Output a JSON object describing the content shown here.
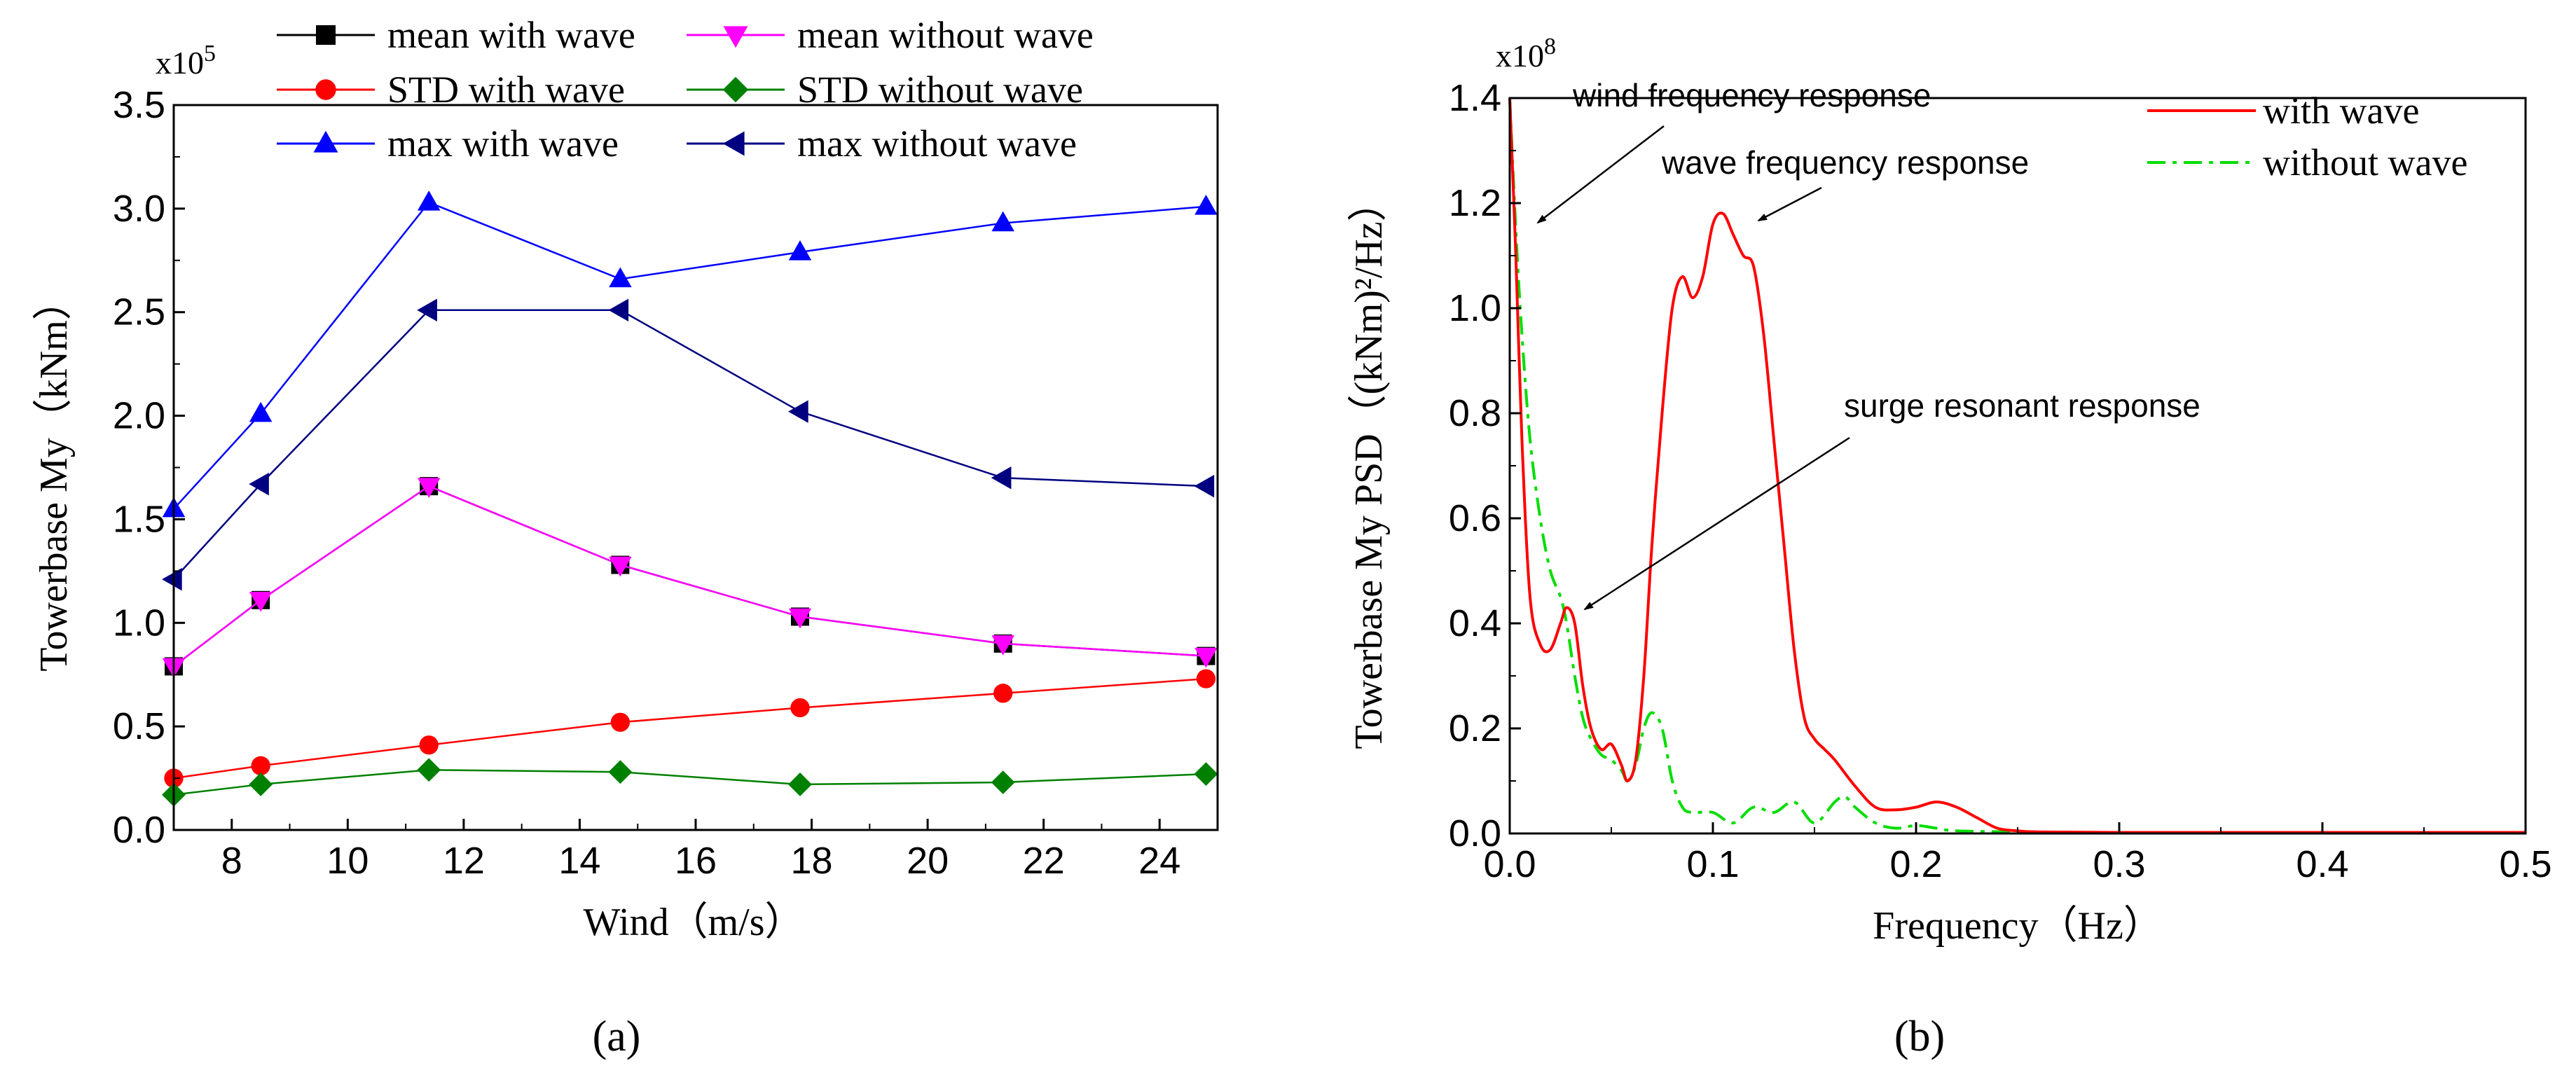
{
  "chart_data": [
    {
      "type": "line",
      "panel_label": "(a)",
      "title": "",
      "xlabel": "Wind（m/s）",
      "ylabel": "Towerbase My（kNm）",
      "y_multiplier": "x10",
      "y_multiplier_exp": "5",
      "xlim": [
        7,
        25
      ],
      "ylim": [
        0,
        3.5
      ],
      "xticks": [
        8,
        10,
        12,
        14,
        16,
        18,
        20,
        22,
        24
      ],
      "yticks": [
        0.0,
        0.5,
        1.0,
        1.5,
        2.0,
        2.5,
        3.0,
        3.5
      ],
      "legend_position": "top",
      "x": [
        7.0,
        8.5,
        11.4,
        14.7,
        17.8,
        21.3,
        24.8
      ],
      "series": [
        {
          "name": "mean with wave",
          "color": "#000000",
          "marker": "square",
          "values": [
            0.79,
            1.11,
            1.66,
            1.28,
            1.03,
            0.9,
            0.84
          ]
        },
        {
          "name": "mean without wave",
          "color": "#ff00ff",
          "marker": "triangle-down",
          "values": [
            0.79,
            1.11,
            1.66,
            1.28,
            1.03,
            0.9,
            0.84
          ]
        },
        {
          "name": "STD with wave",
          "color": "#ff0000",
          "marker": "circle",
          "values": [
            0.25,
            0.31,
            0.41,
            0.52,
            0.59,
            0.66,
            0.73
          ]
        },
        {
          "name": "STD without wave",
          "color": "#008000",
          "marker": "diamond",
          "values": [
            0.17,
            0.22,
            0.29,
            0.28,
            0.22,
            0.23,
            0.27
          ]
        },
        {
          "name": "max with wave",
          "color": "#0000ff",
          "marker": "triangle-up",
          "values": [
            1.55,
            2.01,
            3.03,
            2.66,
            2.79,
            2.93,
            3.01
          ]
        },
        {
          "name": "max without wave",
          "color": "#000080",
          "marker": "triangle-left",
          "values": [
            1.21,
            1.67,
            2.51,
            2.51,
            2.02,
            1.7,
            1.66
          ]
        }
      ]
    },
    {
      "type": "line",
      "panel_label": "(b)",
      "title": "",
      "xlabel": "Frequency（Hz）",
      "ylabel": "Towerbase My PSD（(kNm)²/Hz）",
      "y_multiplier": "x10",
      "y_multiplier_exp": "8",
      "xlim": [
        0,
        0.5
      ],
      "ylim": [
        0,
        1.4
      ],
      "xticks": [
        0.0,
        0.1,
        0.2,
        0.3,
        0.4,
        0.5
      ],
      "yticks": [
        0.0,
        0.2,
        0.4,
        0.6,
        0.8,
        1.0,
        1.2,
        1.4
      ],
      "legend_position": "top-right",
      "series": [
        {
          "name": "with wave",
          "color": "#ff0000",
          "dash": "solid",
          "x": [
            0.0,
            0.003,
            0.006,
            0.01,
            0.015,
            0.02,
            0.025,
            0.028,
            0.032,
            0.036,
            0.04,
            0.045,
            0.05,
            0.055,
            0.058,
            0.062,
            0.066,
            0.07,
            0.075,
            0.08,
            0.085,
            0.09,
            0.095,
            0.1,
            0.105,
            0.11,
            0.115,
            0.12,
            0.125,
            0.13,
            0.135,
            0.14,
            0.145,
            0.15,
            0.155,
            0.16,
            0.17,
            0.18,
            0.19,
            0.2,
            0.21,
            0.22,
            0.23,
            0.24,
            0.25,
            0.26,
            0.3,
            0.4,
            0.5
          ],
          "y": [
            1.4,
            1.1,
            0.75,
            0.45,
            0.36,
            0.35,
            0.4,
            0.43,
            0.4,
            0.28,
            0.2,
            0.16,
            0.17,
            0.13,
            0.1,
            0.14,
            0.3,
            0.55,
            0.8,
            1.0,
            1.06,
            1.02,
            1.06,
            1.16,
            1.18,
            1.14,
            1.1,
            1.08,
            0.95,
            0.75,
            0.55,
            0.35,
            0.22,
            0.18,
            0.16,
            0.14,
            0.09,
            0.05,
            0.045,
            0.05,
            0.06,
            0.05,
            0.03,
            0.01,
            0.005,
            0.003,
            0.002,
            0.002,
            0.002
          ]
        },
        {
          "name": "without wave",
          "color": "#00dd00",
          "dash": "dash-dot",
          "x": [
            0.0,
            0.003,
            0.006,
            0.01,
            0.015,
            0.02,
            0.025,
            0.028,
            0.032,
            0.036,
            0.04,
            0.045,
            0.05,
            0.055,
            0.058,
            0.062,
            0.066,
            0.07,
            0.075,
            0.08,
            0.085,
            0.09,
            0.1,
            0.11,
            0.12,
            0.13,
            0.14,
            0.15,
            0.16,
            0.165,
            0.17,
            0.18,
            0.19,
            0.2,
            0.21,
            0.22,
            0.25,
            0.3,
            0.4,
            0.5
          ],
          "y": [
            1.4,
            1.15,
            0.95,
            0.75,
            0.6,
            0.5,
            0.45,
            0.4,
            0.3,
            0.22,
            0.18,
            0.15,
            0.14,
            0.12,
            0.1,
            0.13,
            0.2,
            0.23,
            0.2,
            0.1,
            0.05,
            0.04,
            0.04,
            0.02,
            0.05,
            0.04,
            0.06,
            0.02,
            0.06,
            0.07,
            0.05,
            0.02,
            0.01,
            0.015,
            0.01,
            0.005,
            0.003,
            0.002,
            0.002,
            0.002
          ]
        }
      ],
      "annotations": [
        {
          "text": "wind frequency response"
        },
        {
          "text": "wave frequency response"
        },
        {
          "text": "surge resonant response"
        }
      ]
    }
  ]
}
